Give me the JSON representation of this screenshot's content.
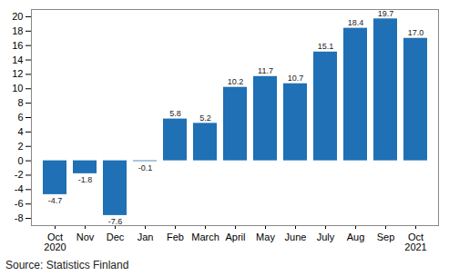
{
  "chart_data": {
    "type": "bar",
    "caption": "Source: Statistics Finland",
    "categories": [
      "Oct\n2020",
      "Nov",
      "Dec",
      "Jan",
      "Feb",
      "March",
      "April",
      "May",
      "June",
      "July",
      "Aug",
      "Sep",
      "Oct\n2021"
    ],
    "values": [
      -4.7,
      -1.8,
      -7.6,
      -0.1,
      5.8,
      5.2,
      10.2,
      11.7,
      10.7,
      15.1,
      18.4,
      19.7,
      17.0
    ],
    "value_labels": [
      "-4.7",
      "-1.8",
      "-7.6",
      "-0.1",
      "5.8",
      "5.2",
      "10.2",
      "11.7",
      "10.7",
      "15.1",
      "18.4",
      "19.7",
      "17.0"
    ],
    "color": "#1f70b4",
    "ylim": [
      -9,
      21
    ],
    "yticks": [
      -8,
      -6,
      -4,
      -2,
      0,
      2,
      4,
      6,
      8,
      10,
      12,
      14,
      16,
      18,
      20
    ],
    "grid": false,
    "data_labels": true
  }
}
